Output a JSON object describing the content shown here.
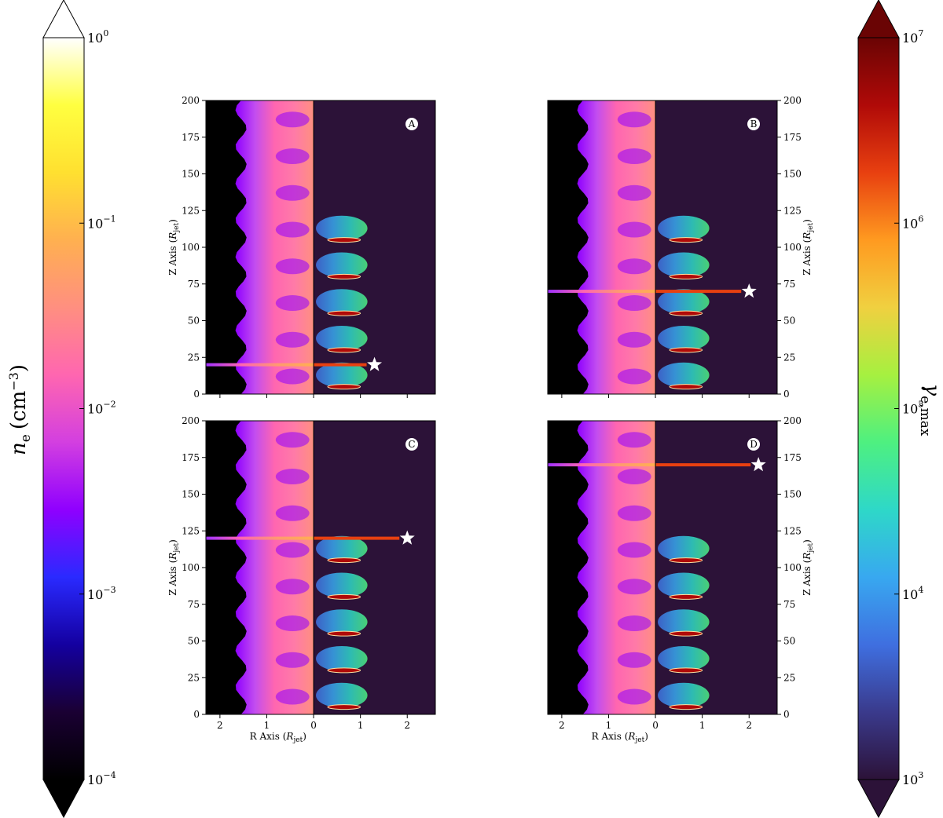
{
  "chart_data": {
    "type": "heatmap",
    "description_free": true,
    "left_colorbar": {
      "label_var": "n",
      "label_sub": "e",
      "label_unit": "(cm",
      "label_unit_exp": "−3",
      "label_unit_close": ")",
      "scale": "log",
      "range": [
        0.0001,
        1
      ],
      "ticks": [
        {
          "base": "10",
          "exp": "0",
          "value": 1
        },
        {
          "base": "10",
          "exp": "−1",
          "value": 0.1
        },
        {
          "base": "10",
          "exp": "−2",
          "value": 0.01
        },
        {
          "base": "10",
          "exp": "−3",
          "value": 0.001
        },
        {
          "base": "10",
          "exp": "−4",
          "value": 0.0001
        }
      ],
      "colormap": [
        "#000000",
        "#1a0033",
        "#1400a0",
        "#2a2aff",
        "#8f00ff",
        "#d33fe0",
        "#ff66b0",
        "#ff8f80",
        "#ffb050",
        "#ffe030",
        "#ffff40",
        "#ffffff"
      ]
    },
    "right_colorbar": {
      "label_var": "γ",
      "label_sub": "e,max",
      "scale": "log",
      "range": [
        1000,
        10000000
      ],
      "ticks": [
        {
          "base": "10",
          "exp": "7",
          "value": 10000000
        },
        {
          "base": "10",
          "exp": "6",
          "value": 1000000
        },
        {
          "base": "10",
          "exp": "5",
          "value": 100000
        },
        {
          "base": "10",
          "exp": "4",
          "value": 10000
        },
        {
          "base": "10",
          "exp": "3",
          "value": 1000
        }
      ],
      "colormap": [
        "#2c1238",
        "#3a3a8c",
        "#3f6fe0",
        "#38a8f0",
        "#2ed8c8",
        "#4ef080",
        "#a6f040",
        "#f0d040",
        "#ff9a20",
        "#e84010",
        "#b00a08",
        "#6a0404"
      ]
    },
    "panels": [
      {
        "id": "A",
        "star_z": 20,
        "star_r": 1.3,
        "z_ticks_side": "left"
      },
      {
        "id": "B",
        "star_z": 70,
        "star_r": 2.0,
        "z_ticks_side": "right"
      },
      {
        "id": "C",
        "star_z": 120,
        "star_r": 2.0,
        "z_ticks_side": "left"
      },
      {
        "id": "D",
        "star_z": 170,
        "star_r": 2.2,
        "z_ticks_side": "right"
      }
    ],
    "x_axis": {
      "label": "R Axis",
      "label_var": "R",
      "label_sub": "jet",
      "range": [
        -2.3,
        2.6
      ],
      "ticks": [
        {
          "value": -2,
          "label": "2"
        },
        {
          "value": -1,
          "label": "1"
        },
        {
          "value": 0,
          "label": "0"
        },
        {
          "value": 1,
          "label": "1"
        },
        {
          "value": 2,
          "label": "2"
        }
      ]
    },
    "y_axis": {
      "label": "Z Axis",
      "label_var": "R",
      "label_sub": "jet",
      "range": [
        0,
        200
      ],
      "ticks": [
        0,
        25,
        50,
        75,
        100,
        125,
        150,
        175,
        200
      ]
    },
    "grid": false
  }
}
